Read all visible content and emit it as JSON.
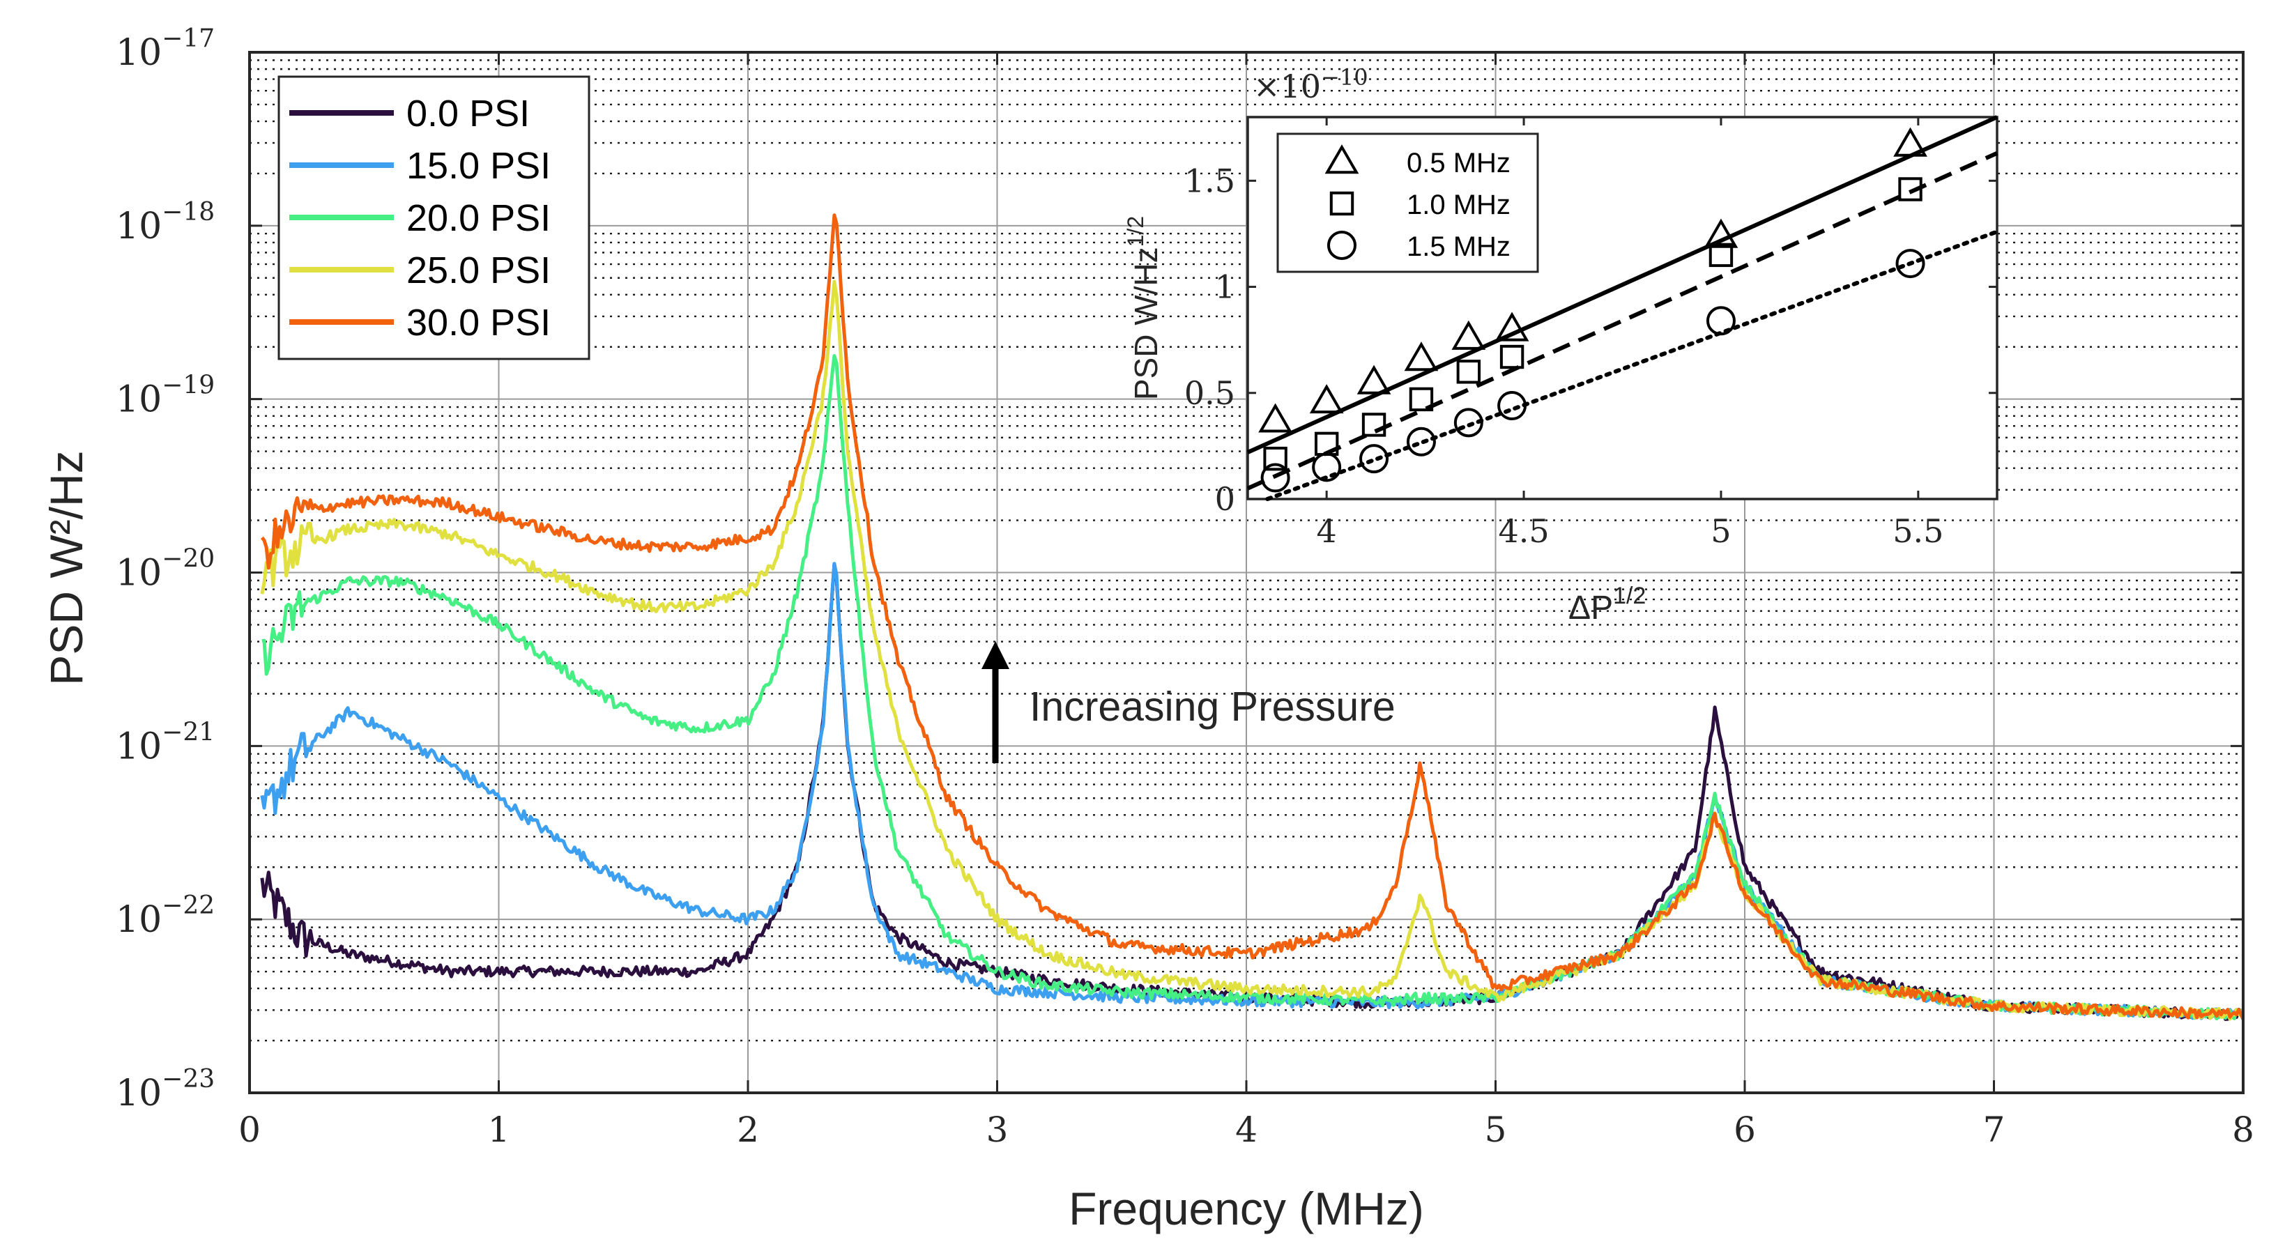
{
  "colors": {
    "0.0 PSI": "#2b0f3e",
    "15.0 PSI": "#3c9ff0",
    "20.0 PSI": "#45ef84",
    "25.0 PSI": "#e0e040",
    "30.0 PSI": "#f2610e"
  },
  "chart_data": [
    {
      "type": "line",
      "title": "",
      "xlabel": "Frequency (MHz)",
      "ylabel": "PSD W²/Hz",
      "xlim": [
        0,
        8
      ],
      "ylim_log10": [
        -23,
        -17
      ],
      "yscale": "log",
      "xticks": [
        "0",
        "1",
        "2",
        "3",
        "4",
        "5",
        "6",
        "7",
        "8"
      ],
      "yticks": [
        {
          "base": "10",
          "exp": "−17"
        },
        {
          "base": "10",
          "exp": "−18"
        },
        {
          "base": "10",
          "exp": "−19"
        },
        {
          "base": "10",
          "exp": "−20"
        },
        {
          "base": "10",
          "exp": "−21"
        },
        {
          "base": "10",
          "exp": "−22"
        },
        {
          "base": "10",
          "exp": "−23"
        }
      ],
      "grid": "major and minor",
      "legend_position": "top-left",
      "annotation": "Increasing Pressure",
      "x": [
        0.05,
        0.2,
        0.4,
        0.6,
        0.8,
        1.0,
        1.2,
        1.4,
        1.6,
        1.8,
        2.0,
        2.1,
        2.2,
        2.3,
        2.35,
        2.4,
        2.5,
        2.6,
        2.8,
        3.0,
        3.2,
        3.5,
        4.0,
        4.5,
        4.6,
        4.7,
        4.8,
        5.0,
        5.5,
        5.8,
        5.88,
        6.0,
        6.3,
        7.0,
        8.0
      ],
      "series": [
        {
          "name": "0.0 PSI",
          "values_log10": [
            -21.8,
            -22.1,
            -22.2,
            -22.25,
            -22.3,
            -22.3,
            -22.3,
            -22.3,
            -22.3,
            -22.3,
            -22.2,
            -22.0,
            -21.7,
            -20.9,
            -19.9,
            -21.0,
            -21.9,
            -22.1,
            -22.25,
            -22.3,
            -22.35,
            -22.4,
            -22.45,
            -22.48,
            -22.48,
            -22.48,
            -22.47,
            -22.45,
            -22.2,
            -21.6,
            -20.8,
            -21.7,
            -22.3,
            -22.5,
            -22.55
          ]
        },
        {
          "name": "15.0 PSI",
          "values_log10": [
            -21.4,
            -21.05,
            -20.8,
            -20.95,
            -21.1,
            -21.3,
            -21.5,
            -21.7,
            -21.85,
            -21.95,
            -22.0,
            -21.95,
            -21.7,
            -20.9,
            -19.9,
            -21.0,
            -21.9,
            -22.2,
            -22.3,
            -22.4,
            -22.42,
            -22.45,
            -22.47,
            -22.48,
            -22.48,
            -22.48,
            -22.47,
            -22.45,
            -22.2,
            -21.75,
            -21.3,
            -21.8,
            -22.35,
            -22.5,
            -22.55
          ]
        },
        {
          "name": "20.0 PSI",
          "values_log10": [
            -20.5,
            -20.2,
            -20.05,
            -20.05,
            -20.15,
            -20.3,
            -20.5,
            -20.7,
            -20.85,
            -20.9,
            -20.85,
            -20.6,
            -20.1,
            -19.4,
            -18.7,
            -19.6,
            -21.0,
            -21.6,
            -22.1,
            -22.3,
            -22.38,
            -22.42,
            -22.45,
            -22.47,
            -22.47,
            -22.45,
            -22.46,
            -22.45,
            -22.2,
            -21.75,
            -21.3,
            -21.8,
            -22.35,
            -22.5,
            -22.55
          ]
        },
        {
          "name": "25.0 PSI",
          "values_log10": [
            -20.0,
            -19.85,
            -19.75,
            -19.72,
            -19.78,
            -19.9,
            -20.0,
            -20.12,
            -20.2,
            -20.2,
            -20.1,
            -19.95,
            -19.6,
            -19.0,
            -18.3,
            -19.3,
            -20.3,
            -20.9,
            -21.6,
            -22.0,
            -22.2,
            -22.32,
            -22.4,
            -22.42,
            -22.35,
            -21.85,
            -22.3,
            -22.45,
            -22.2,
            -21.8,
            -21.4,
            -21.85,
            -22.35,
            -22.5,
            -22.55
          ]
        },
        {
          "name": "30.0 PSI",
          "values_log10": [
            -19.9,
            -19.65,
            -19.6,
            -19.58,
            -19.6,
            -19.68,
            -19.75,
            -19.82,
            -19.85,
            -19.85,
            -19.8,
            -19.75,
            -19.4,
            -18.8,
            -17.85,
            -18.9,
            -19.9,
            -20.5,
            -21.3,
            -21.7,
            -21.95,
            -22.15,
            -22.2,
            -22.05,
            -21.8,
            -21.1,
            -21.9,
            -22.4,
            -22.2,
            -21.8,
            -21.4,
            -21.85,
            -22.35,
            -22.5,
            -22.55
          ]
        }
      ]
    },
    {
      "type": "scatter",
      "title": "",
      "xlabel": "ΔP",
      "xlabel_sup": "1/2",
      "ylabel": "PSD W/Hz",
      "ylabel_sup": "1/2",
      "multiplier_base": "×10",
      "multiplier_exp": "−10",
      "xlim": [
        3.8,
        5.7
      ],
      "ylim": [
        0,
        1.8
      ],
      "xticks": [
        "4",
        "4.5",
        "5",
        "5.5"
      ],
      "yticks": [
        "0",
        "0.5",
        "1",
        "1.5"
      ],
      "grid": "off",
      "legend_position": "top-left",
      "x": [
        3.87,
        4.0,
        4.12,
        4.24,
        4.36,
        4.47,
        5.0,
        5.48
      ],
      "series": [
        {
          "name": "0.5 MHz",
          "marker": "triangle",
          "line": "solid",
          "values": [
            0.37,
            0.46,
            0.55,
            0.66,
            0.76,
            0.8,
            1.24,
            1.67
          ],
          "fit": [
            3.8,
            0.22,
            5.7,
            1.8
          ]
        },
        {
          "name": "1.0 MHz",
          "marker": "square",
          "line": "dashed",
          "values": [
            0.19,
            0.26,
            0.35,
            0.47,
            0.6,
            0.67,
            1.15,
            1.46
          ],
          "fit": [
            3.8,
            0.05,
            5.7,
            1.63
          ]
        },
        {
          "name": "1.5 MHz",
          "marker": "circle",
          "line": "dotted",
          "values": [
            0.1,
            0.15,
            0.19,
            0.27,
            0.36,
            0.44,
            0.84,
            1.11
          ],
          "fit": [
            3.85,
            0.0,
            5.7,
            1.26
          ]
        }
      ]
    }
  ]
}
